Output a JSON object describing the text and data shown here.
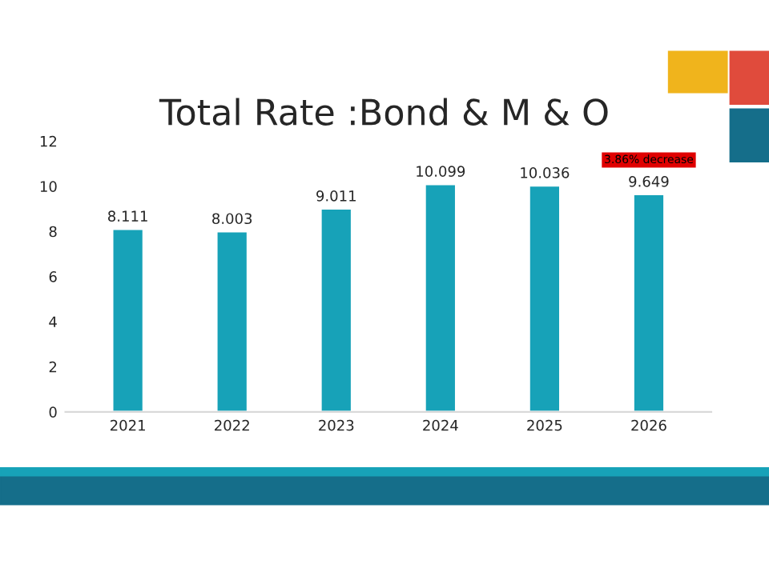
{
  "chart_data": {
    "type": "bar",
    "title": "Total Rate :Bond & M & O",
    "categories": [
      "2021",
      "2022",
      "2023",
      "2024",
      "2025",
      "2026"
    ],
    "values": [
      8.111,
      8.003,
      9.011,
      10.099,
      10.036,
      9.649
    ],
    "color": "#17a2b8",
    "ylim": [
      0,
      12
    ],
    "yticks": [
      0,
      2,
      4,
      6,
      8,
      10,
      12
    ],
    "grid": false,
    "data_labels": true,
    "annotations": [
      "3.86% decrease"
    ]
  }
}
